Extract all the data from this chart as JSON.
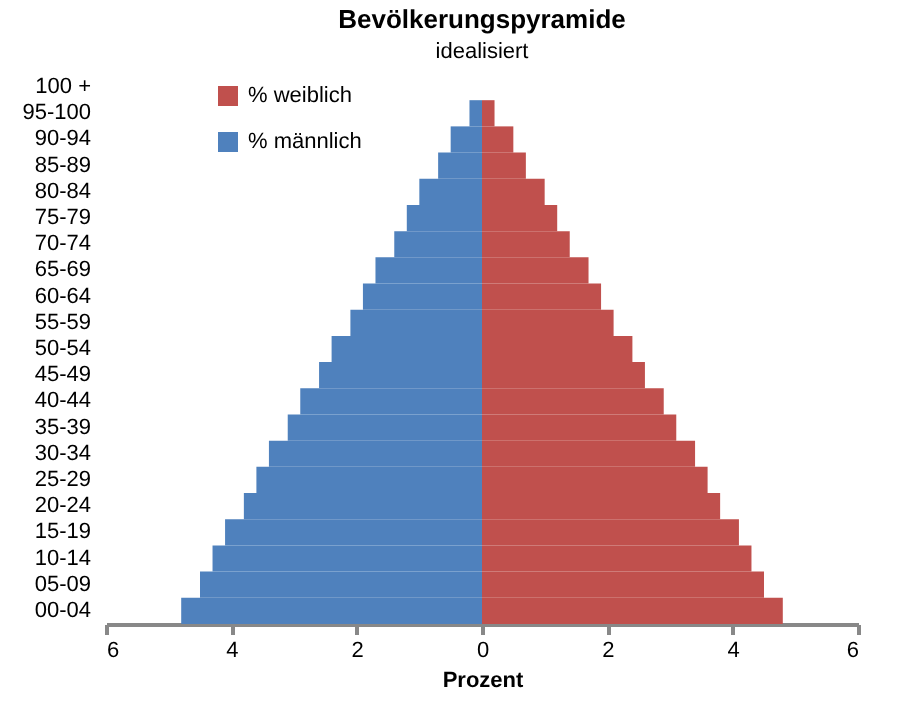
{
  "chart_data": {
    "type": "bar",
    "orientation": "horizontal",
    "title": "Bevölkerungspyramide",
    "subtitle": "idealisiert",
    "xlabel": "Prozent",
    "categories": [
      "100 +",
      "95-100",
      "90-94",
      "85-89",
      "80-84",
      "75-79",
      "70-74",
      "65-69",
      "60-64",
      "55-59",
      "50-54",
      "45-49",
      "40-44",
      "35-39",
      "30-34",
      "25-29",
      "20-24",
      "15-19",
      "10-14",
      "05-09",
      "00-04"
    ],
    "series": [
      {
        "name": "% weiblich",
        "color": "#c0504d",
        "values": [
          0,
          0.2,
          0.5,
          0.7,
          1.0,
          1.2,
          1.4,
          1.7,
          1.9,
          2.1,
          2.4,
          2.6,
          2.9,
          3.1,
          3.4,
          3.6,
          3.8,
          4.1,
          4.3,
          4.5,
          4.8
        ]
      },
      {
        "name": "% männlich",
        "color": "#4f81bd",
        "values": [
          0,
          -0.2,
          -0.5,
          -0.7,
          -1.0,
          -1.2,
          -1.4,
          -1.7,
          -1.9,
          -2.1,
          -2.4,
          -2.6,
          -2.9,
          -3.1,
          -3.4,
          -3.6,
          -3.8,
          -4.1,
          -4.3,
          -4.5,
          -4.8
        ]
      }
    ],
    "xlim": [
      -6,
      6
    ],
    "xticks": [
      {
        "value": -6,
        "label": "6"
      },
      {
        "value": -4,
        "label": "4"
      },
      {
        "value": -2,
        "label": "2"
      },
      0,
      2,
      4,
      6
    ],
    "stacked": true,
    "grid": false,
    "legend": "top left"
  }
}
